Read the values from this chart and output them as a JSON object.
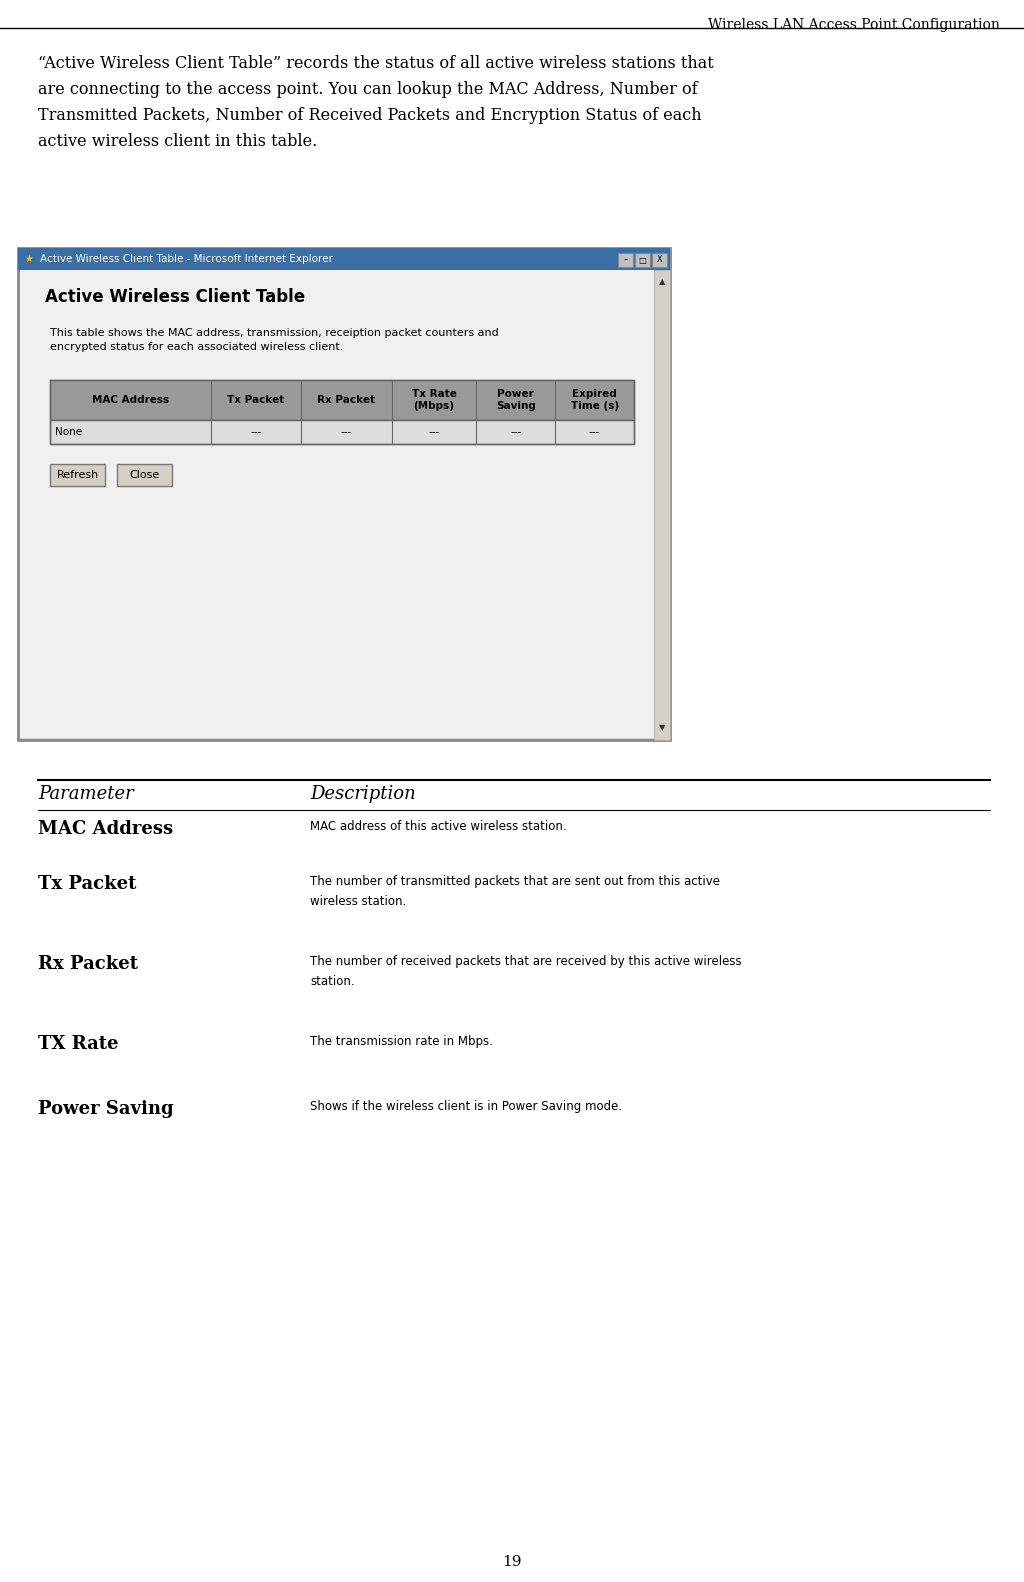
{
  "page_title": "Wireless LAN Access Point Configuration",
  "page_number": "19",
  "intro_lines": [
    "“Active Wireless Client Table” records the status of all active wireless stations that",
    "are connecting to the access point. You can lookup the MAC Address, Number of",
    "Transmitted Packets, Number of Received Packets and Encryption Status of each",
    "active wireless client in this table."
  ],
  "browser_title": "Active Wireless Client Table - Microsoft Internet Explorer",
  "browser_heading": "Active Wireless Client Table",
  "browser_subtext_line1": "This table shows the MAC address, transmission, receiption packet counters and",
  "browser_subtext_line2": "encrypted status for each associated wireless client.",
  "table_headers": [
    "MAC Address",
    "Tx Packet",
    "Rx Packet",
    "Tx Rate\n(Mbps)",
    "Power\nSaving",
    "Expired\nTime (s)"
  ],
  "table_data": [
    "None",
    "---",
    "---",
    "---",
    "---",
    "---"
  ],
  "col_props": [
    0.275,
    0.155,
    0.155,
    0.145,
    0.135,
    0.135
  ],
  "button1": "Refresh",
  "button2": "Close",
  "param_header": "Parameter",
  "desc_header": "Description",
  "params": [
    {
      "name": "MAC Address",
      "desc": "MAC address of this active wireless station."
    },
    {
      "name": "Tx Packet",
      "desc": "The number of transmitted packets that are sent out from this active\nwireless station."
    },
    {
      "name": "Rx Packet",
      "desc": "The number of received packets that are received by this active wireless\nstation."
    },
    {
      "name": "TX Rate",
      "desc": "The transmission rate in Mbps."
    },
    {
      "name": "Power Saving",
      "desc": "Shows if the wireless client is in Power Saving mode."
    }
  ],
  "bg_color": "#ffffff",
  "browser_outer_bg": "#d4d0c8",
  "browser_content_bg": "#ececec",
  "titlebar_color": "#0a246a",
  "table_header_bg": "#999999",
  "table_data_bg": "#cccccc",
  "table_border": "#666666",
  "scrollbar_bg": "#d4d0c8",
  "button_bg": "#d4d0c8",
  "title_line_color": "#000000"
}
